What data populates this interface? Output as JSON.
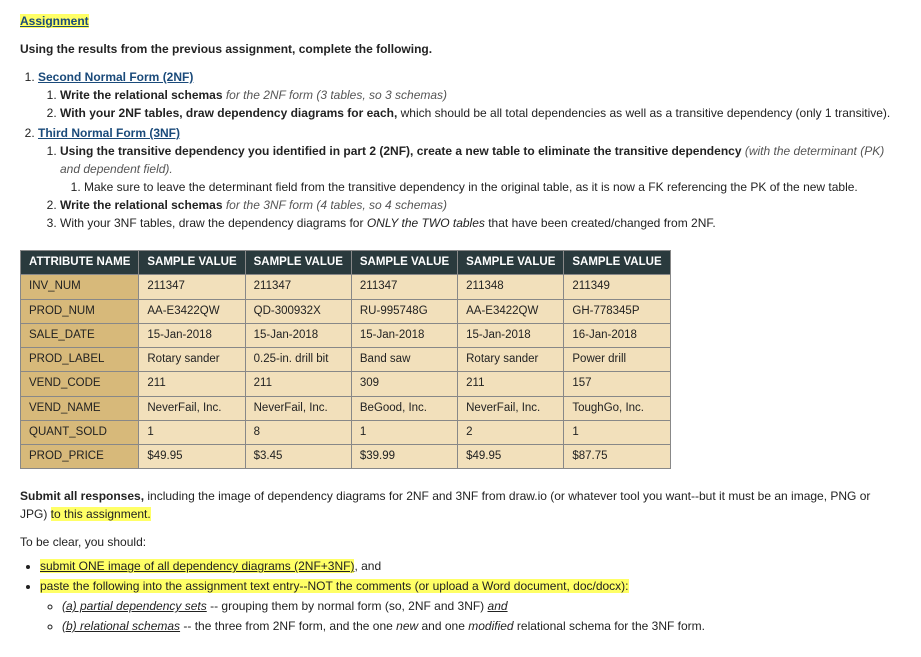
{
  "title": {
    "bar_left": "  ",
    "link": "Assignment",
    "bar_right": "  "
  },
  "intro": "Using the results from the previous assignment, complete the following.",
  "sections": {
    "s1_head": "Second Normal Form (2NF)",
    "s1_i1_bold": "Write the relational schemas ",
    "s1_i1_ital": "for the 2NF form (3 tables, so 3 schemas)",
    "s1_i2_bold": "With your 2NF tables, draw dependency diagrams for each, ",
    "s1_i2_rest": "which should be all total dependencies as well as a transitive dependency (only 1 transitive).",
    "s2_head": "Third Normal Form (3NF)",
    "s2_i1_bold": "Using the transitive dependency you identified in part 2 (2NF), create a new table to eliminate the transitive dependency ",
    "s2_i1_ital": "(with the determinant (PK) and dependent field).",
    "s2_i1a": "Make sure to leave the determinant field from the transitive dependency in the original table, as it is now a FK referencing the PK of the new table.",
    "s2_i2_bold": "Write the relational schemas ",
    "s2_i2_ital": "for the 3NF form (4 tables, so 4 schemas)",
    "s2_i3_a": "With your 3NF tables, draw the dependency diagrams for ",
    "s2_i3_ital": "ONLY the TWO tables ",
    "s2_i3_b": "that have been created/changed from 2NF."
  },
  "table": {
    "headers": [
      "ATTRIBUTE NAME",
      "SAMPLE VALUE",
      "SAMPLE VALUE",
      "SAMPLE VALUE",
      "SAMPLE VALUE",
      "SAMPLE VALUE"
    ],
    "rows": [
      [
        "INV_NUM",
        "211347",
        "211347",
        "211347",
        "211348",
        "211349"
      ],
      [
        "PROD_NUM",
        "AA-E3422QW",
        "QD-300932X",
        "RU-995748G",
        "AA-E3422QW",
        "GH-778345P"
      ],
      [
        "SALE_DATE",
        "15-Jan-2018",
        "15-Jan-2018",
        "15-Jan-2018",
        "15-Jan-2018",
        "16-Jan-2018"
      ],
      [
        "PROD_LABEL",
        "Rotary sander",
        "0.25-in. drill bit",
        "Band saw",
        "Rotary sander",
        "Power drill"
      ],
      [
        "VEND_CODE",
        "211",
        "211",
        "309",
        "211",
        "157"
      ],
      [
        "VEND_NAME",
        "NeverFail, Inc.",
        "NeverFail, Inc.",
        "BeGood, Inc.",
        "NeverFail, Inc.",
        "ToughGo, Inc."
      ],
      [
        "QUANT_SOLD",
        "1",
        "8",
        "1",
        "2",
        "1"
      ],
      [
        "PROD_PRICE",
        "$49.95",
        "$3.45",
        "$39.99",
        "$49.95",
        "$87.75"
      ]
    ]
  },
  "submit": {
    "lead_bold": "Submit all responses, ",
    "lead_rest": "including the image of dependency diagrams for 2NF and 3NF from draw.io (or whatever tool you want--but it must be an image, PNG or JPG) ",
    "lead_hl": "to this assignment.",
    "tbc": "To be clear, you should:",
    "b1_ul": "submit ONE image of all dependency diagrams (2NF+3NF)",
    "b1_tail": ", and",
    "b2_text": "paste the following into the assignment text entry--NOT the comments (or upload a Word document, doc/docx):",
    "b2a_ital_ul": "(a) partial dependency sets",
    "b2a_rest": " -- grouping them by normal form (so, 2NF and 3NF) ",
    "b2a_and": "and",
    "b2b_ital_ul": "(b) relational schemas",
    "b2b_rest": " -- the three from 2NF form, and the one ",
    "b2b_new": "new",
    "b2b_mid": " and one ",
    "b2b_mod": "modified",
    "b2b_tail": " relational schema for the 3NF form."
  }
}
